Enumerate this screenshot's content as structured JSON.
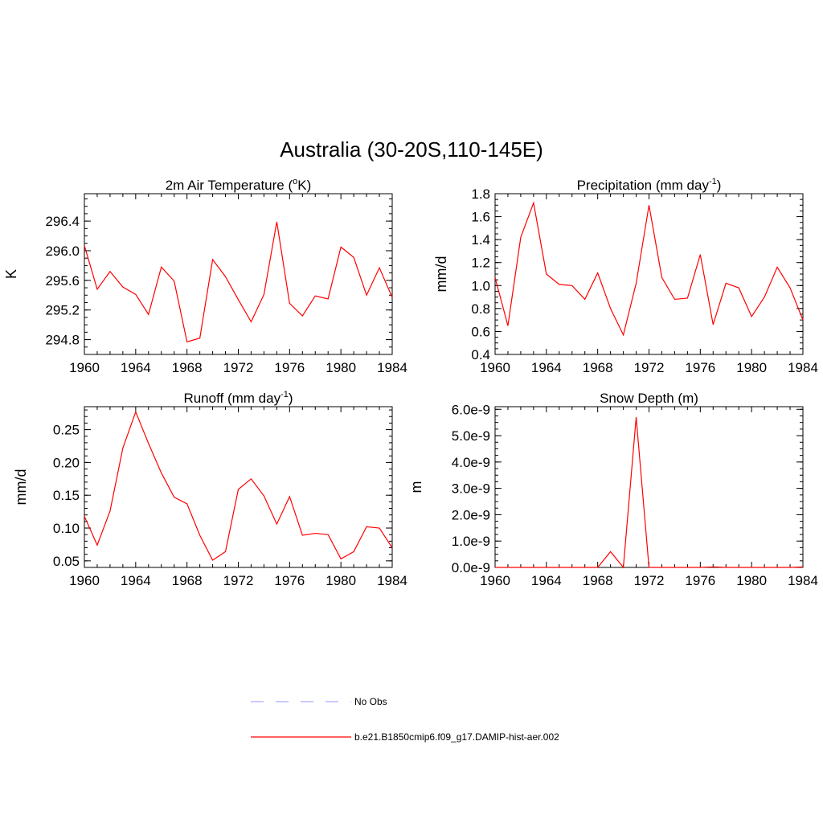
{
  "title": "Australia (30-20S,110-145E)",
  "colors": {
    "series": "#ff0000",
    "obs": "#aaaaff",
    "axis": "#000000"
  },
  "legend": [
    {
      "label": "No Obs",
      "style": "dashed",
      "color": "#aaaaff"
    },
    {
      "label": "b.e21.B1850cmip6.f09_g17.DAMIP-hist-aer.002",
      "style": "solid",
      "color": "#ff0000"
    }
  ],
  "chart_data": [
    {
      "type": "line",
      "title": "2m Air Temperature (°K)",
      "title_parts": {
        "pre": "2m Air Temperature (",
        "sup": "o",
        "post": "K)"
      },
      "xlabel": "",
      "ylabel": "K",
      "xlim": [
        1960,
        1984
      ],
      "ylim": [
        294.6,
        296.77
      ],
      "xticks": [
        1960,
        1964,
        1968,
        1972,
        1976,
        1980,
        1984
      ],
      "xtick_labels": [
        "1960",
        "1964",
        "1968",
        "1972",
        "1976",
        "1980",
        "1984"
      ],
      "yticks": [
        294.8,
        295.2,
        295.6,
        296.0,
        296.4
      ],
      "ytick_labels": [
        "294.8",
        "295.2",
        "295.6",
        "296.0",
        "296.4"
      ],
      "yminor_step": 0.1,
      "grid": false,
      "series": [
        {
          "x": [
            1960,
            1961,
            1962,
            1963,
            1964,
            1965,
            1966,
            1967,
            1968,
            1969,
            1970,
            1971,
            1972,
            1973,
            1974,
            1975,
            1976,
            1977,
            1978,
            1979,
            1980,
            1981,
            1982,
            1983,
            1984
          ],
          "values": [
            296.07,
            295.48,
            295.72,
            295.51,
            295.41,
            295.14,
            295.78,
            295.59,
            294.77,
            294.82,
            295.88,
            295.65,
            295.34,
            295.04,
            295.41,
            296.39,
            295.29,
            295.12,
            295.39,
            295.35,
            296.05,
            295.91,
            295.4,
            295.77,
            295.37
          ]
        }
      ]
    },
    {
      "type": "line",
      "title": "Precipitation (mm day-1)",
      "title_parts": {
        "pre": "Precipitation (mm day",
        "sup": "-1",
        "post": ")"
      },
      "xlabel": "",
      "ylabel": "mm/d",
      "xlim": [
        1960,
        1984
      ],
      "ylim": [
        0.4,
        1.8
      ],
      "xticks": [
        1960,
        1964,
        1968,
        1972,
        1976,
        1980,
        1984
      ],
      "xtick_labels": [
        "1960",
        "1964",
        "1968",
        "1972",
        "1976",
        "1980",
        "1984"
      ],
      "yticks": [
        0.4,
        0.6,
        0.8,
        1.0,
        1.2,
        1.4,
        1.6,
        1.8
      ],
      "ytick_labels": [
        "0.4",
        "0.6",
        "0.8",
        "1.0",
        "1.2",
        "1.4",
        "1.6",
        "1.8"
      ],
      "yminor_step": 0.05,
      "grid": false,
      "series": [
        {
          "x": [
            1960,
            1961,
            1962,
            1963,
            1964,
            1965,
            1966,
            1967,
            1968,
            1969,
            1970,
            1971,
            1972,
            1973,
            1974,
            1975,
            1976,
            1977,
            1978,
            1979,
            1980,
            1981,
            1982,
            1983,
            1984
          ],
          "values": [
            1.07,
            0.65,
            1.42,
            1.72,
            1.1,
            1.01,
            1.0,
            0.88,
            1.11,
            0.8,
            0.57,
            1.02,
            1.7,
            1.07,
            0.88,
            0.89,
            1.27,
            0.66,
            1.02,
            0.98,
            0.73,
            0.9,
            1.16,
            0.98,
            0.7
          ]
        }
      ]
    },
    {
      "type": "line",
      "title": "Runoff (mm day-1)",
      "title_parts": {
        "pre": "Runoff (mm day",
        "sup": "-1",
        "post": ")"
      },
      "xlabel": "",
      "ylabel": "mm/d",
      "xlim": [
        1960,
        1984
      ],
      "ylim": [
        0.04,
        0.285
      ],
      "xticks": [
        1960,
        1964,
        1968,
        1972,
        1976,
        1980,
        1984
      ],
      "xtick_labels": [
        "1960",
        "1964",
        "1968",
        "1972",
        "1976",
        "1980",
        "1984"
      ],
      "yticks": [
        0.05,
        0.1,
        0.15,
        0.2,
        0.25
      ],
      "ytick_labels": [
        "0.05",
        "0.10",
        "0.15",
        "0.20",
        "0.25"
      ],
      "yminor_step": 0.01,
      "grid": false,
      "series": [
        {
          "x": [
            1960,
            1961,
            1962,
            1963,
            1964,
            1965,
            1966,
            1967,
            1968,
            1969,
            1970,
            1971,
            1972,
            1973,
            1974,
            1975,
            1976,
            1977,
            1978,
            1979,
            1980,
            1981,
            1982,
            1983,
            1984
          ],
          "values": [
            0.118,
            0.074,
            0.126,
            0.222,
            0.277,
            0.229,
            0.184,
            0.147,
            0.137,
            0.089,
            0.051,
            0.064,
            0.159,
            0.175,
            0.149,
            0.106,
            0.148,
            0.089,
            0.092,
            0.09,
            0.053,
            0.064,
            0.102,
            0.1,
            0.07
          ]
        }
      ]
    },
    {
      "type": "line",
      "title": "Snow Depth (m)",
      "title_parts": {
        "pre": "Snow Depth (m)",
        "sup": "",
        "post": ""
      },
      "xlabel": "",
      "ylabel": "m",
      "xlim": [
        1960,
        1984
      ],
      "ylim": [
        0,
        6.1e-09
      ],
      "xticks": [
        1960,
        1964,
        1968,
        1972,
        1976,
        1980,
        1984
      ],
      "xtick_labels": [
        "1960",
        "1964",
        "1968",
        "1972",
        "1976",
        "1980",
        "1984"
      ],
      "yticks": [
        0,
        1e-09,
        2e-09,
        3e-09,
        4e-09,
        5e-09,
        6e-09
      ],
      "ytick_labels": [
        "0.0e-9",
        "1.0e-9",
        "2.0e-9",
        "3.0e-9",
        "4.0e-9",
        "5.0e-9",
        "6.0e-9"
      ],
      "yminor_step": 2.5e-10,
      "grid": false,
      "series": [
        {
          "x": [
            1960,
            1961,
            1962,
            1963,
            1964,
            1965,
            1966,
            1967,
            1968,
            1969,
            1970,
            1971,
            1972,
            1973,
            1974,
            1975,
            1976,
            1977,
            1978,
            1979,
            1980,
            1981,
            1982,
            1983,
            1984
          ],
          "values": [
            0,
            0,
            0,
            0,
            0,
            0,
            0,
            0,
            0,
            6e-10,
            0,
            5.7e-09,
            0,
            0,
            0,
            0,
            0,
            2e-11,
            0,
            0,
            0,
            0,
            0,
            0,
            2e-11
          ]
        }
      ]
    }
  ]
}
